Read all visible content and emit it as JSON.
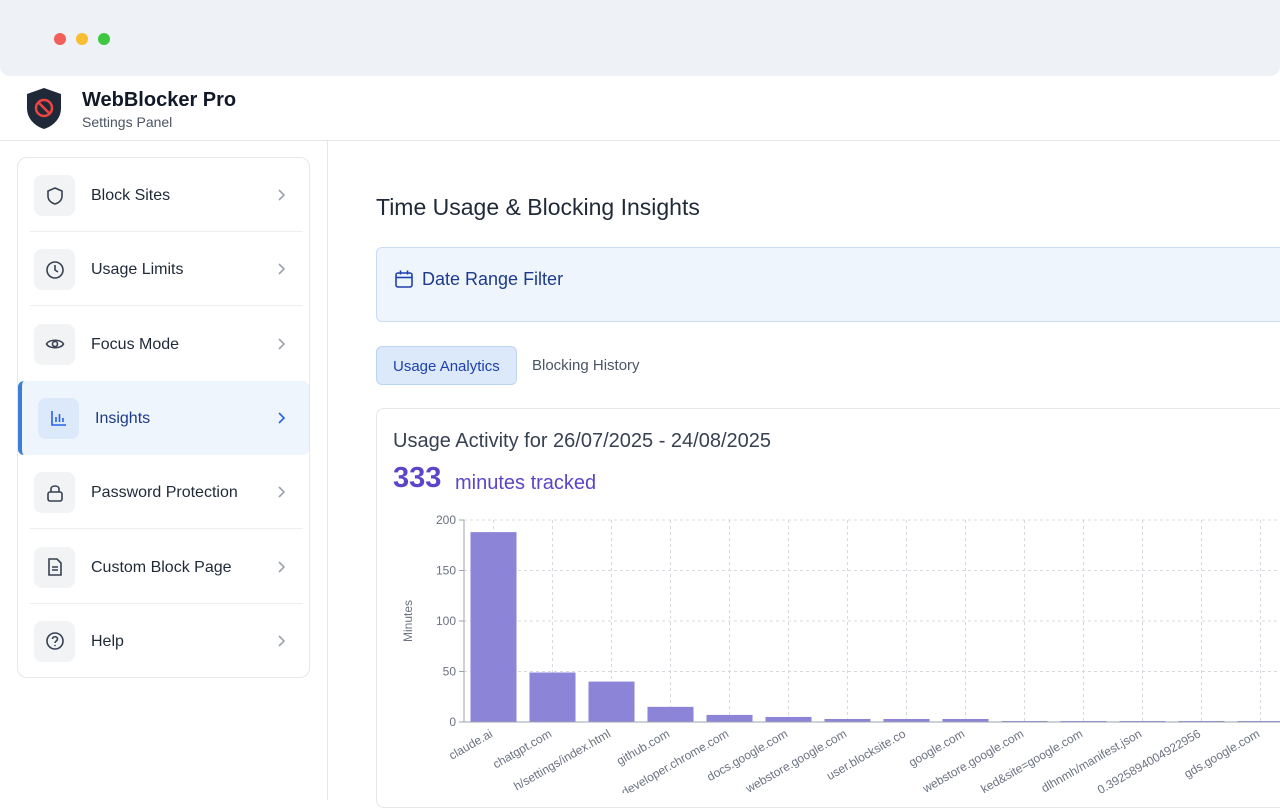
{
  "header": {
    "title": "WebBlocker Pro",
    "subtitle": "Settings Panel"
  },
  "nav": {
    "items": [
      "Block Sites",
      "Usage Limits",
      "Focus Mode",
      "Insights",
      "Password Protection",
      "Custom Block Page",
      "Help"
    ],
    "active": 3
  },
  "page": {
    "title": "Time Usage & Blocking Insights",
    "filter": "Date Range Filter",
    "tabs": [
      "Usage Analytics",
      "Blocking History"
    ],
    "active_tab": 0
  },
  "summary": {
    "heading": "Usage Activity for 26/07/2025 - 24/08/2025",
    "total": 333,
    "unit": "minutes tracked"
  },
  "chart_data": {
    "type": "bar",
    "y_label": "Minutes",
    "categories": [
      "claude.ai",
      "chatgpt.com",
      "h/settings/index.html",
      "github.com",
      "developer.chrome.com",
      "docs.google.com",
      "webstore.google.com",
      "user.blocksite.co",
      "google.com",
      "webstore.google.com",
      "ked&site=google.com",
      "dlhnmh/manifest.json",
      "0.3925894004922956",
      "gds.google.com"
    ],
    "values": [
      188,
      49,
      40,
      15,
      7,
      5,
      3,
      3,
      3,
      1,
      1,
      1,
      1,
      1
    ],
    "color": "#8b84d7",
    "ylim": [
      0,
      200
    ],
    "yticks": [
      0,
      50,
      100,
      150,
      200
    ],
    "grid": true
  }
}
